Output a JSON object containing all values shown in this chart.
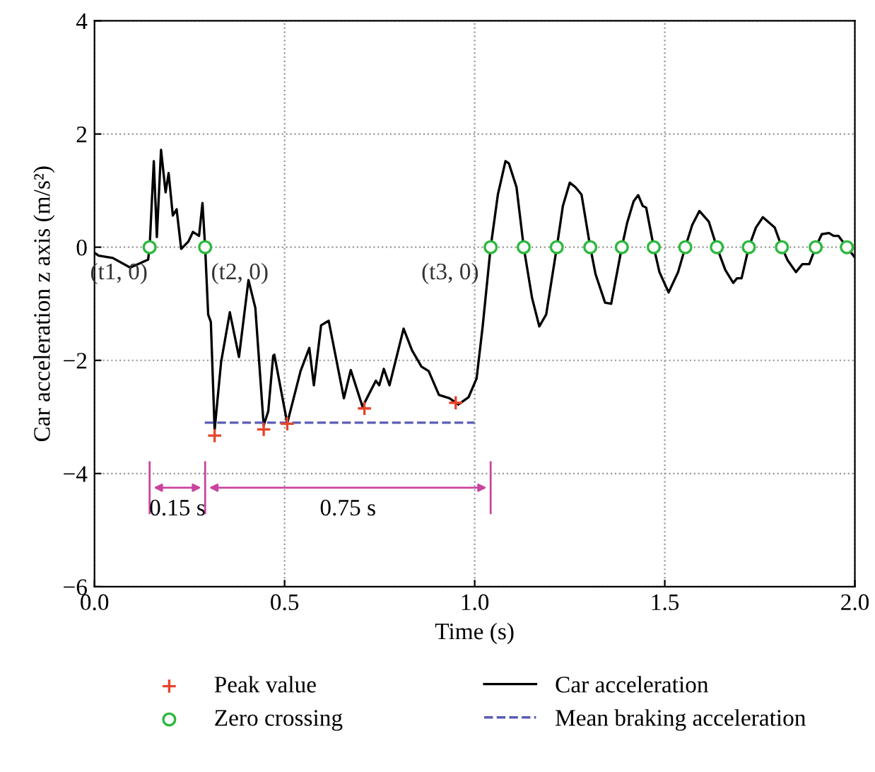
{
  "chart_data": {
    "type": "line",
    "xlabel": "Time (s)",
    "ylabel": "Car acceleration z axis (m/s²)",
    "xlim": [
      0,
      2
    ],
    "ylim": [
      -6,
      4
    ],
    "xticks": [
      {
        "value": 0,
        "label": "0.0"
      },
      {
        "value": 0.5,
        "label": "0.5"
      },
      {
        "value": 1,
        "label": "1.0"
      },
      {
        "value": 1.5,
        "label": "1.5"
      },
      {
        "value": 2,
        "label": "2.0"
      }
    ],
    "yticks": [
      -6,
      -4,
      -2,
      0,
      2,
      4
    ],
    "grid": true,
    "legend": "bottom",
    "series": [
      {
        "name": "Peak value",
        "type": "scatter",
        "marker": "cross",
        "color": "#e8432b",
        "x": [
          0.316,
          0.445,
          0.507,
          0.71,
          0.95
        ],
        "values": [
          -3.33,
          -3.22,
          -3.12,
          -2.85,
          -2.75
        ]
      },
      {
        "name": "Zero crossing",
        "type": "scatter",
        "marker": "circle",
        "color": "#2db83d",
        "x": [
          0.145,
          0.291,
          1.042,
          1.129,
          1.216,
          1.304,
          1.387,
          1.471,
          1.554,
          1.637,
          1.721,
          1.808,
          1.897,
          1.979
        ],
        "values": [
          0,
          0,
          0,
          0,
          0,
          0,
          0,
          0,
          0,
          0,
          0,
          0,
          0,
          0
        ]
      },
      {
        "name": "Car acceleration",
        "line_style": "solid",
        "color": "#000000",
        "x": [
          0,
          0.011,
          0.048,
          0.094,
          0.141,
          0.145,
          0.156,
          0.164,
          0.175,
          0.187,
          0.195,
          0.206,
          0.216,
          0.228,
          0.247,
          0.259,
          0.275,
          0.284,
          0.291,
          0.299,
          0.306,
          0.316,
          0.333,
          0.356,
          0.38,
          0.405,
          0.423,
          0.445,
          0.457,
          0.47,
          0.473,
          0.507,
          0.542,
          0.565,
          0.577,
          0.596,
          0.616,
          0.656,
          0.674,
          0.705,
          0.74,
          0.749,
          0.761,
          0.776,
          0.813,
          0.835,
          0.86,
          0.879,
          0.906,
          0.934,
          0.957,
          0.984,
          1.005,
          1.021,
          1.042,
          1.061,
          1.081,
          1.09,
          1.11,
          1.129,
          1.151,
          1.17,
          1.188,
          1.216,
          1.232,
          1.25,
          1.265,
          1.281,
          1.304,
          1.318,
          1.343,
          1.359,
          1.387,
          1.401,
          1.418,
          1.43,
          1.442,
          1.451,
          1.471,
          1.486,
          1.51,
          1.535,
          1.554,
          1.572,
          1.591,
          1.616,
          1.637,
          1.659,
          1.68,
          1.69,
          1.702,
          1.721,
          1.74,
          1.758,
          1.789,
          1.808,
          1.823,
          1.845,
          1.862,
          1.88,
          1.897,
          1.913,
          1.932,
          1.944,
          1.957,
          1.979,
          2.0
        ],
        "values": [
          -0.1,
          -0.15,
          -0.19,
          -0.36,
          -0.22,
          0,
          1.52,
          0.18,
          1.72,
          0.97,
          1.31,
          0.56,
          0.67,
          -0.03,
          0.1,
          0.27,
          0.2,
          0.78,
          0,
          -1.19,
          -1.32,
          -3.23,
          -2.03,
          -1.15,
          -1.94,
          -0.58,
          -1.07,
          -3.15,
          -2.9,
          -1.92,
          -1.9,
          -3.11,
          -2.19,
          -1.78,
          -2.44,
          -1.38,
          -1.3,
          -2.67,
          -2.17,
          -2.82,
          -2.36,
          -2.44,
          -2.15,
          -2.44,
          -1.44,
          -1.82,
          -2.11,
          -2.19,
          -2.61,
          -2.67,
          -2.78,
          -2.65,
          -2.32,
          -1.4,
          0,
          0.93,
          1.52,
          1.48,
          1.06,
          0,
          -0.9,
          -1.4,
          -1.19,
          0,
          0.73,
          1.14,
          1.06,
          0.93,
          0,
          -0.48,
          -0.98,
          -1.0,
          0,
          0.43,
          0.81,
          0.92,
          0.73,
          0.7,
          0,
          -0.44,
          -0.8,
          -0.44,
          0,
          0.39,
          0.64,
          0.45,
          0,
          -0.4,
          -0.63,
          -0.55,
          -0.55,
          0,
          0.35,
          0.53,
          0.35,
          0,
          -0.23,
          -0.44,
          -0.3,
          -0.3,
          0,
          0.23,
          0.25,
          0.2,
          0.2,
          0,
          -0.18
        ]
      },
      {
        "name": "Mean braking acceleration",
        "line_style": "dashed",
        "color": "#5b5bb5",
        "x": [
          0.29,
          1.0
        ],
        "values": [
          -3.1,
          -3.1
        ]
      }
    ],
    "annotations": [
      {
        "text": "(t1, 0)",
        "x": 0.145,
        "y": 0
      },
      {
        "text": "(t2, 0)",
        "x": 0.291,
        "y": 0
      },
      {
        "text": "(t3, 0)",
        "x": 1.042,
        "y": 0
      },
      "0.15 s",
      "0.75 s"
    ]
  }
}
